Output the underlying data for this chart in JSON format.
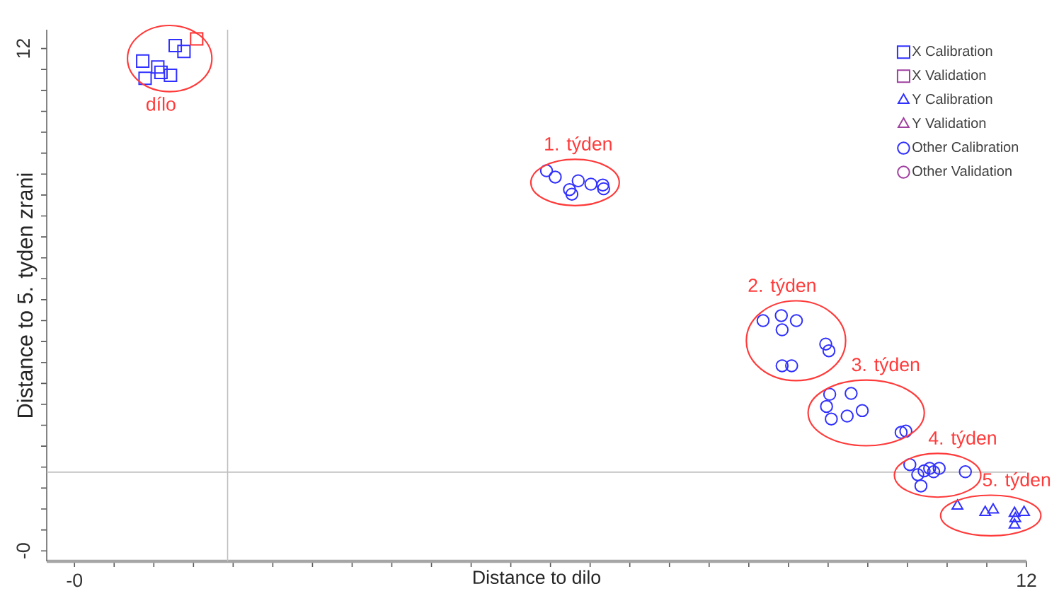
{
  "chart_data": {
    "type": "scatter",
    "xlabel": "Distance to dilo",
    "ylabel": "Distance to 5. tyden zrani",
    "xlim": [
      -0.35,
      12
    ],
    "ylim": [
      -0.25,
      12.45
    ],
    "xticks": [
      {
        "value": 0,
        "label": "-0"
      },
      {
        "value": 0.5,
        "label": null
      },
      {
        "value": 1,
        "label": null
      },
      {
        "value": 1.5,
        "label": null
      },
      {
        "value": 2,
        "label": null
      },
      {
        "value": 2.5,
        "label": null
      },
      {
        "value": 3,
        "label": null
      },
      {
        "value": 3.5,
        "label": null
      },
      {
        "value": 4,
        "label": null
      },
      {
        "value": 4.5,
        "label": null
      },
      {
        "value": 5,
        "label": null
      },
      {
        "value": 5.5,
        "label": null
      },
      {
        "value": 6,
        "label": null
      },
      {
        "value": 6.5,
        "label": null
      },
      {
        "value": 7,
        "label": null
      },
      {
        "value": 7.5,
        "label": null
      },
      {
        "value": 8,
        "label": null
      },
      {
        "value": 8.5,
        "label": null
      },
      {
        "value": 9,
        "label": null
      },
      {
        "value": 9.5,
        "label": null
      },
      {
        "value": 10,
        "label": null
      },
      {
        "value": 10.5,
        "label": null
      },
      {
        "value": 11,
        "label": null
      },
      {
        "value": 11.5,
        "label": null
      },
      12
    ],
    "yticks": [
      {
        "value": 0,
        "label": "-0"
      },
      {
        "value": 0.5,
        "label": null
      },
      {
        "value": 1,
        "label": null
      },
      {
        "value": 1.5,
        "label": null
      },
      {
        "value": 2,
        "label": null
      },
      {
        "value": 2.5,
        "label": null
      },
      {
        "value": 3,
        "label": null
      },
      {
        "value": 3.5,
        "label": null
      },
      {
        "value": 4,
        "label": null
      },
      {
        "value": 4.5,
        "label": null
      },
      {
        "value": 5,
        "label": null
      },
      {
        "value": 5.5,
        "label": null
      },
      {
        "value": 6,
        "label": null
      },
      {
        "value": 6.5,
        "label": null
      },
      {
        "value": 7,
        "label": null
      },
      {
        "value": 7.5,
        "label": null
      },
      {
        "value": 8,
        "label": null
      },
      {
        "value": 8.5,
        "label": null
      },
      {
        "value": 9,
        "label": null
      },
      {
        "value": 9.5,
        "label": null
      },
      {
        "value": 10,
        "label": null
      },
      {
        "value": 10.5,
        "label": null
      },
      {
        "value": 11,
        "label": null
      },
      {
        "value": 11.5,
        "label": null
      },
      12
    ],
    "legend": "top right",
    "series": [
      {
        "name": "X Calibration",
        "color": "#3030ff",
        "marker": "square",
        "x": [
          0.86,
          0.89,
          1.05,
          1.09,
          1.21,
          1.27,
          1.38
        ],
        "values": [
          11.7,
          11.29,
          11.56,
          11.43,
          11.36,
          12.07,
          11.93
        ]
      },
      {
        "name": "X Validation",
        "color": "#a040a0",
        "marker": "square"
      },
      {
        "color": "#ff3030",
        "marker": "square",
        "x": [
          1.54
        ],
        "values": [
          12.23
        ]
      },
      {
        "name": "Y Calibration",
        "color": "#3030ff",
        "marker": "triangle",
        "x": [
          11.13,
          11.48,
          11.58,
          11.85,
          11.86,
          11.97,
          11.85
        ],
        "values": [
          1.07,
          0.92,
          0.98,
          0.9,
          0.77,
          0.92,
          0.62
        ]
      },
      {
        "name": "Y Validation",
        "color": "#a040a0",
        "marker": "triangle"
      },
      {
        "name": "Other Calibration",
        "color": "#3030ff",
        "marker": "circle",
        "x": [
          5.95,
          6.06,
          6.24,
          6.27,
          6.35,
          6.51,
          6.66,
          6.67,
          8.68,
          8.91,
          8.92,
          9.1,
          9.47,
          9.51,
          8.92,
          9.04,
          9.52,
          9.79,
          9.48,
          9.54,
          9.74,
          9.93,
          10.42,
          10.48,
          10.53,
          10.63,
          10.71,
          10.78,
          10.83,
          10.9,
          10.67,
          11.23
        ],
        "values": [
          9.08,
          8.93,
          8.63,
          8.52,
          8.84,
          8.76,
          8.74,
          8.65,
          5.5,
          5.62,
          5.28,
          5.5,
          4.94,
          4.78,
          4.42,
          4.42,
          3.74,
          3.76,
          3.45,
          3.15,
          3.22,
          3.35,
          2.83,
          2.86,
          2.06,
          1.82,
          1.91,
          1.97,
          1.89,
          1.97,
          1.55,
          1.89
        ]
      },
      {
        "name": "Other Validation",
        "color": "#a040a0",
        "marker": "circle"
      }
    ],
    "ref_lines": [
      {
        "axis": "x",
        "value": 1.93,
        "color": "#c0c0c0"
      },
      {
        "axis": "y",
        "value": 1.88,
        "color": "#c0c0c0"
      }
    ],
    "annotations": [
      {
        "text": "dílo",
        "x": 1.09,
        "y": 11.43
      },
      {
        "text": "1. týden",
        "x": 6.35,
        "y": 8.84
      },
      {
        "text": "2. týden",
        "x": 8.92,
        "y": 5.28
      },
      {
        "text": "3. týden",
        "x": 9.93,
        "y": 3.35
      },
      {
        "text": "4. týden",
        "x": 10.9,
        "y": 1.97
      },
      {
        "text": "5. týden",
        "x": 11.58,
        "y": 0.98
      }
    ]
  }
}
